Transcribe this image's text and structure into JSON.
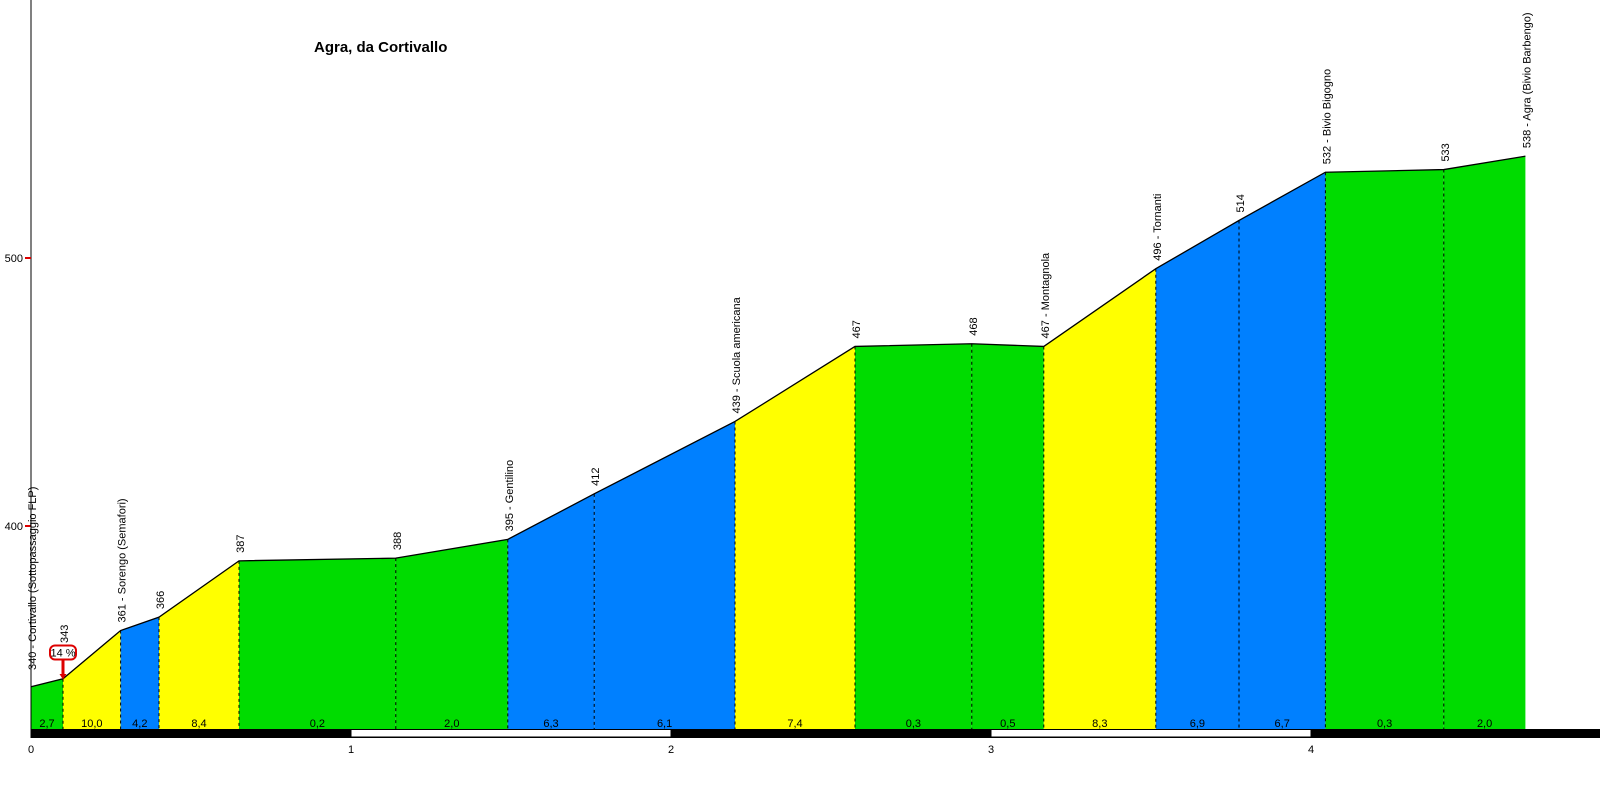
{
  "chart_data": {
    "type": "area",
    "title": "Agra, da Cortivallo",
    "x_unit": "km",
    "x_ticks": [
      0,
      1,
      2,
      3,
      4
    ],
    "y_ticks": [
      400,
      500
    ],
    "x_range": [
      0,
      4.67
    ],
    "y_axis_elevation_unit": "m",
    "grid": false,
    "legend": "none",
    "colors": {
      "green": "#00DC00",
      "yellow": "#FFFF00",
      "blue": "#0080FF",
      "marker_red": "#DD0000",
      "line": "#000000",
      "scale_bar_black": "#000000",
      "scale_bar_white": "#FFFFFF"
    },
    "points": [
      {
        "km": 0.0,
        "elev": 340,
        "label": "340 - Cortivallo (Sottopassaggio FLP)"
      },
      {
        "km": 0.1,
        "elev": 343,
        "label": "343"
      },
      {
        "km": 0.28,
        "elev": 361,
        "label": "361 - Sorengo (Semafori)"
      },
      {
        "km": 0.4,
        "elev": 366,
        "label": "366"
      },
      {
        "km": 0.65,
        "elev": 387,
        "label": "387"
      },
      {
        "km": 1.14,
        "elev": 388,
        "label": "388"
      },
      {
        "km": 1.49,
        "elev": 395,
        "label": "395 - Gentilino"
      },
      {
        "km": 1.76,
        "elev": 412,
        "label": "412"
      },
      {
        "km": 2.2,
        "elev": 439,
        "label": "439 - Scuola americana"
      },
      {
        "km": 2.575,
        "elev": 467,
        "label": "467"
      },
      {
        "km": 2.94,
        "elev": 468,
        "label": "468"
      },
      {
        "km": 3.165,
        "elev": 467,
        "label": "467 - Montagnola"
      },
      {
        "km": 3.515,
        "elev": 496,
        "label": "496 - Tornanti"
      },
      {
        "km": 3.775,
        "elev": 514,
        "label": "514"
      },
      {
        "km": 4.045,
        "elev": 532,
        "label": "532 - Bivio Bigogno"
      },
      {
        "km": 4.415,
        "elev": 533,
        "label": "533"
      },
      {
        "km": 4.67,
        "elev": 538,
        "label": "538 - Agra (Bivio Barbengo)"
      }
    ],
    "segments": [
      {
        "gradient": "2,7",
        "color": "green"
      },
      {
        "gradient": "10,0",
        "color": "yellow"
      },
      {
        "gradient": "4,2",
        "color": "blue"
      },
      {
        "gradient": "8,4",
        "color": "yellow"
      },
      {
        "gradient": "0,2",
        "color": "green"
      },
      {
        "gradient": "2,0",
        "color": "green"
      },
      {
        "gradient": "6,3",
        "color": "blue"
      },
      {
        "gradient": "6,1",
        "color": "blue"
      },
      {
        "gradient": "7,4",
        "color": "yellow"
      },
      {
        "gradient": "0,3",
        "color": "green"
      },
      {
        "gradient": "0,5",
        "color": "green"
      },
      {
        "gradient": "8,3",
        "color": "yellow"
      },
      {
        "gradient": "6,9",
        "color": "blue"
      },
      {
        "gradient": "6,7",
        "color": "blue"
      },
      {
        "gradient": "0,3",
        "color": "green"
      },
      {
        "gradient": "2,0",
        "color": "green"
      }
    ],
    "max_gradient_marker": {
      "label": "14 %",
      "at_km": 0.1
    },
    "scale_bar": {
      "pattern": "alternating black/white per km",
      "white_km_spans": [
        [
          1,
          2
        ],
        [
          3,
          4
        ]
      ]
    }
  }
}
